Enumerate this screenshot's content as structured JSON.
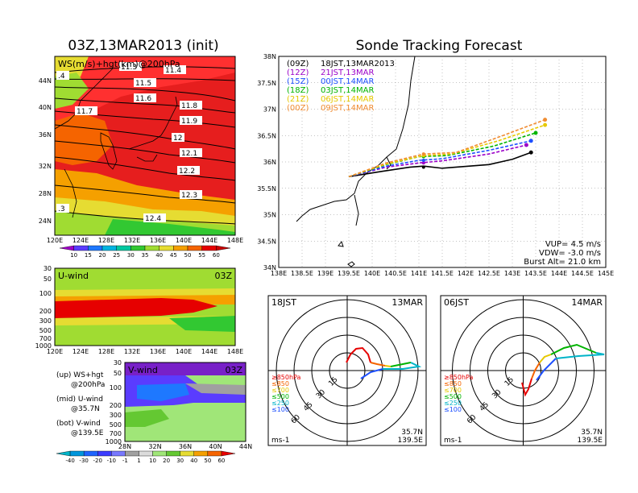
{
  "left_title": "03Z,13MAR2013 (init)",
  "right_title": "Sonde Tracking Forecast",
  "map": {
    "label": "WS(m/s)+hgt(km)@200hPa",
    "lon_ticks": [
      "120E",
      "124E",
      "128E",
      "132E",
      "136E",
      "140E",
      "144E",
      "148E"
    ],
    "lat_ticks": [
      "44N",
      "40N",
      "36N",
      "32N",
      "28N",
      "24N"
    ],
    "contours": [
      {
        "label": "11.3"
      },
      {
        "label": "11.4"
      },
      {
        "label": "11.5"
      },
      {
        "label": "11.6"
      },
      {
        "label": "11.7"
      },
      {
        "label": "11.8"
      },
      {
        "label": "11.9"
      },
      {
        "label": "12"
      },
      {
        "label": "12.1"
      },
      {
        "label": "12.2"
      },
      {
        "label": "12.3"
      },
      {
        "label": "12.4"
      },
      {
        "label": ".4"
      },
      {
        "label": ".3"
      }
    ],
    "colorbar_labels": [
      "10",
      "15",
      "20",
      "25",
      "30",
      "35",
      "40",
      "45",
      "50",
      "55",
      "60"
    ],
    "colorbar_colors": [
      "#a000c8",
      "#5a3cff",
      "#1e78ff",
      "#00b4e0",
      "#00c8a0",
      "#32c832",
      "#a0dc32",
      "#e6dc32",
      "#f5a000",
      "#f56400",
      "#e60000",
      "#c80000"
    ]
  },
  "u_panel": {
    "label": "U-wind",
    "time": "03Z",
    "p_ticks": [
      "30",
      "50",
      "100",
      "200",
      "300",
      "500",
      "700",
      "1000"
    ],
    "lon_ticks": [
      "120E",
      "124E",
      "128E",
      "132E",
      "136E",
      "140E",
      "144E",
      "148E"
    ]
  },
  "v_panel": {
    "label": "V-wind",
    "time": "03Z",
    "p_ticks": [
      "30",
      "50",
      "100",
      "200",
      "300",
      "500",
      "700",
      "1000"
    ],
    "lat_ticks": [
      "28N",
      "32N",
      "36N",
      "40N",
      "44N"
    ],
    "colorbar_labels": [
      "-40",
      "-30",
      "-20",
      "-10",
      "-1",
      "1",
      "10",
      "20",
      "30",
      "40",
      "50",
      "60"
    ],
    "colorbar_colors": [
      "#00b4c8",
      "#0096dc",
      "#1e64ff",
      "#3c3cff",
      "#7878ff",
      "#a0a0a0",
      "#dcdcdc",
      "#a0e678",
      "#64c832",
      "#e6dc32",
      "#f5a000",
      "#f56400",
      "#e60000"
    ]
  },
  "panel_notes": [
    {
      "line1": "(up) WS+hgt",
      "line2": "@200hPa"
    },
    {
      "line1": "(mid) U-wind",
      "line2": "@35.7N"
    },
    {
      "line1": "(bot) V-wind",
      "line2": "@139.5E"
    }
  ],
  "track": {
    "lat_ticks": [
      "38N",
      "37.5N",
      "37N",
      "36.5N",
      "36N",
      "35.5N",
      "35N",
      "34.5N",
      "34N"
    ],
    "lon_ticks": [
      "138E",
      "138.5E",
      "139E",
      "139.5E",
      "140E",
      "140.5E",
      "141E",
      "141.5E",
      "142E",
      "142.5E",
      "143E",
      "143.5E",
      "144E",
      "144.5E",
      "145E"
    ],
    "legend": [
      {
        "code": "(09Z)",
        "time": "18JST,13MAR2013",
        "color": "#000000"
      },
      {
        "code": "(12Z)",
        "time": "21JST,13MAR",
        "color": "#9b00c8"
      },
      {
        "code": "(15Z)",
        "time": "00JST,14MAR",
        "color": "#1e50ff"
      },
      {
        "code": "(18Z)",
        "time": "03JST,14MAR",
        "color": "#00b400"
      },
      {
        "code": "(21Z)",
        "time": "06JST,14MAR",
        "color": "#e6c800"
      },
      {
        "code": "(00Z)",
        "time": "09JST,14MAR",
        "color": "#f08c32"
      }
    ],
    "params": [
      "VUP= 4.5 m/s",
      "VDW= -3.0 m/s",
      "Burst Alt= 21.0 km"
    ]
  },
  "chart_data": [
    {
      "type": "line",
      "title": "Sonde Tracking Forecast",
      "xlim": [
        138,
        145
      ],
      "ylim": [
        34,
        38
      ],
      "series": [
        {
          "name": "(09Z) 18JST,13MAR2013",
          "x": [
            139.5,
            140.2,
            140.8,
            141.1,
            141.5,
            142.5,
            143.0,
            143.4
          ],
          "y": [
            35.72,
            35.82,
            35.9,
            35.92,
            35.88,
            35.95,
            36.05,
            36.18
          ]
        },
        {
          "name": "(12Z) 21JST,13MAR",
          "x": [
            139.5,
            140.3,
            141.0,
            141.5,
            142.5,
            143.3
          ],
          "y": [
            35.72,
            35.9,
            35.98,
            36.02,
            36.15,
            36.32
          ]
        },
        {
          "name": "(15Z) 00JST,14MAR",
          "x": [
            139.5,
            140.3,
            141.0,
            141.5,
            142.5,
            143.4
          ],
          "y": [
            35.72,
            35.92,
            36.03,
            36.06,
            36.22,
            36.4
          ]
        },
        {
          "name": "(18Z) 03JST,14MAR",
          "x": [
            139.5,
            140.3,
            141.0,
            141.6,
            142.6,
            143.5
          ],
          "y": [
            35.72,
            35.95,
            36.1,
            36.12,
            36.3,
            36.55
          ]
        },
        {
          "name": "(21Z) 06JST,14MAR",
          "x": [
            139.5,
            140.3,
            141.1,
            141.7,
            142.7,
            143.7
          ],
          "y": [
            35.72,
            35.96,
            36.12,
            36.15,
            36.4,
            36.7
          ]
        },
        {
          "name": "(00Z) 09JST,14MAR",
          "x": [
            139.5,
            140.3,
            141.1,
            141.8,
            142.8,
            143.7
          ],
          "y": [
            35.72,
            35.98,
            36.15,
            36.18,
            36.5,
            36.8
          ]
        }
      ]
    }
  ],
  "hodographs": [
    {
      "time": "18JST",
      "date": "13MAR",
      "loc_lat": "35.7N",
      "loc_lon": "139.5E",
      "units": "ms-1",
      "ring_labels": [
        "15",
        "30",
        "45",
        "60"
      ],
      "levels": [
        "≥850hPa",
        "≤850",
        "≤700",
        "≤500",
        "≤250",
        "≤100"
      ],
      "level_colors": [
        "#e60000",
        "#f56400",
        "#e6c800",
        "#00b400",
        "#00b4c8",
        "#1e50ff"
      ]
    },
    {
      "time": "06JST",
      "date": "14MAR",
      "loc_lat": "35.7N",
      "loc_lon": "139.5E",
      "units": "ms-1",
      "ring_labels": [
        "15",
        "30",
        "45",
        "60"
      ],
      "levels": [
        "≥850hPa",
        "≤850",
        "≤700",
        "≤500",
        "≤250",
        "≤100"
      ],
      "level_colors": [
        "#e60000",
        "#f56400",
        "#e6c800",
        "#00b400",
        "#00b4c8",
        "#1e50ff"
      ]
    }
  ]
}
